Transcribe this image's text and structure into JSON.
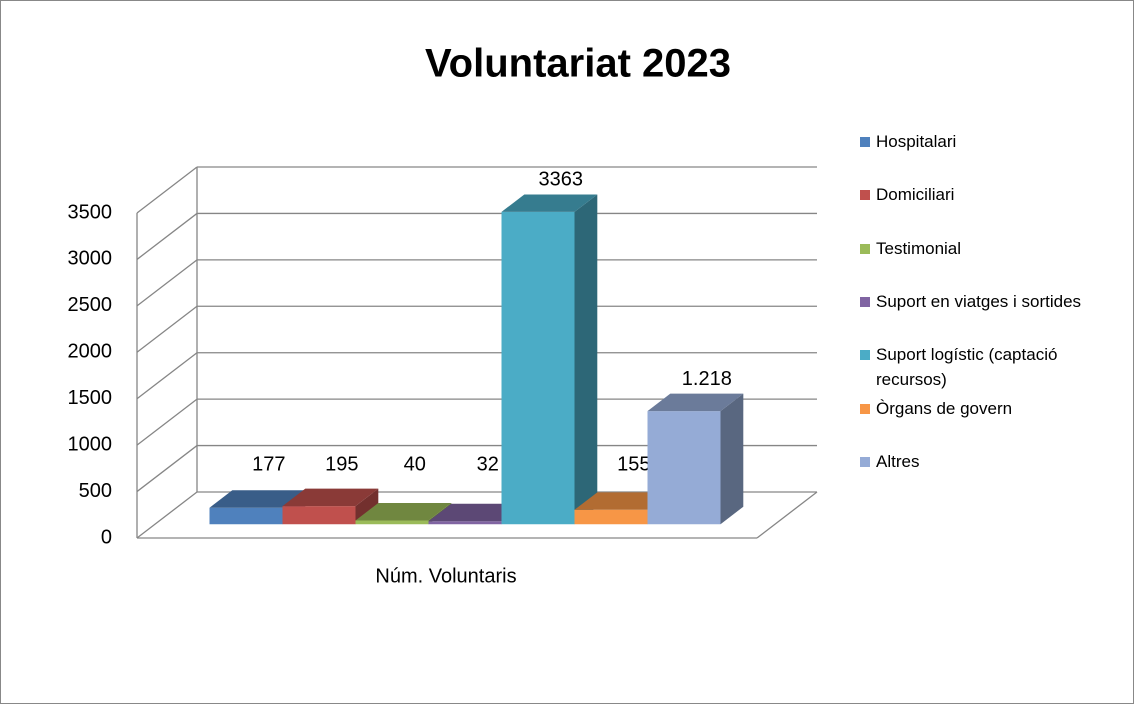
{
  "chart_data": {
    "type": "bar3d",
    "title": "Voluntariat 2023",
    "categories": [
      "Núm. Voluntaris"
    ],
    "series": [
      {
        "name": "Hospitalari",
        "color": "#4f81bd",
        "values": [
          177
        ]
      },
      {
        "name": "Domiciliari",
        "color": "#c0504d",
        "values": [
          195
        ]
      },
      {
        "name": "Testimonial",
        "color": "#9bbb59",
        "values": [
          40
        ]
      },
      {
        "name": "Suport en viatges i sortides",
        "color": "#8064a2",
        "values": [
          32
        ]
      },
      {
        "name": "Suport logístic (captació recursos)",
        "color": "#4bacc6",
        "values": [
          3363
        ]
      },
      {
        "name": "Òrgans de govern",
        "color": "#f79646",
        "values": [
          155
        ]
      },
      {
        "name": "Altres",
        "color": "#95abd6",
        "values": [
          1218
        ],
        "value_labels": [
          "1.218"
        ]
      }
    ],
    "ylim": [
      0,
      3500
    ],
    "yticks": [
      0,
      500,
      1000,
      1500,
      2000,
      2500,
      3000,
      3500
    ],
    "grid": true,
    "legend": "right"
  }
}
